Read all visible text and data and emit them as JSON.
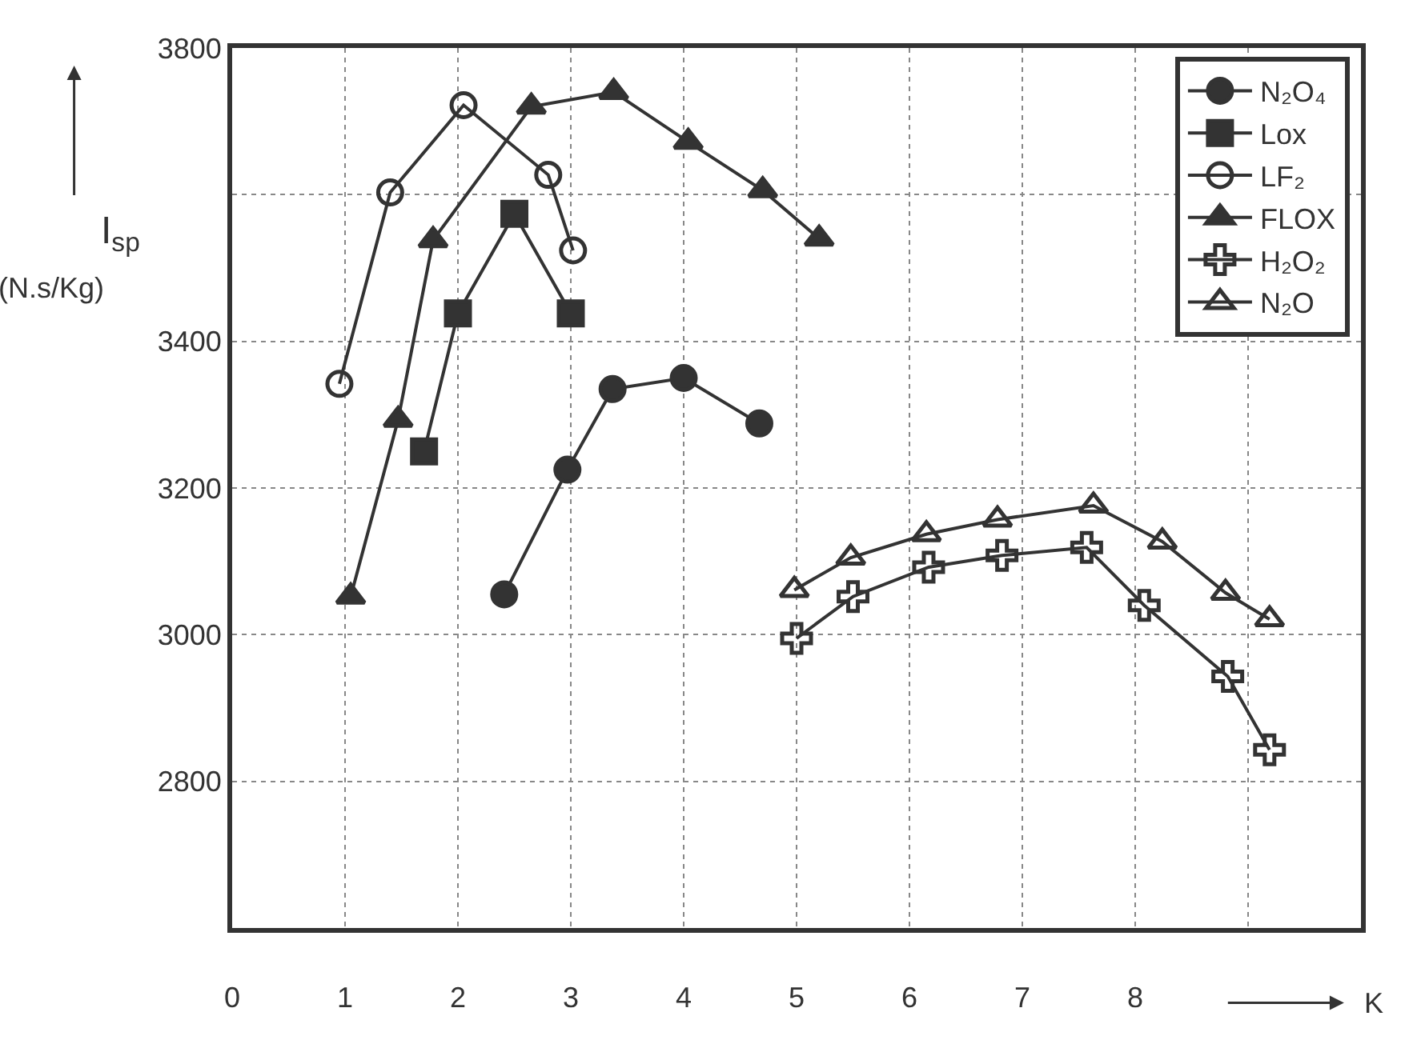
{
  "chart_data": {
    "type": "line",
    "xlabel": "K",
    "ylabel": "I$_{sp}$ (N.s/Kg)",
    "xlim": [
      0,
      10
    ],
    "xticks": [
      0,
      1,
      2,
      3,
      4,
      5,
      6,
      7,
      8,
      {
        "value": 9,
        "label": null
      }
    ],
    "ylim": [
      2600,
      3800
    ],
    "yticks": [
      {
        "value": 2800,
        "label": "2800"
      },
      3000,
      3200,
      3400,
      {
        "value": 3600,
        "label": null
      },
      3800
    ],
    "grid": true,
    "legend": "top right",
    "line_style": "solid",
    "series": [
      {
        "name": "N₂O₄",
        "color": "#333333",
        "marker": "circle",
        "x": [
          2.41,
          2.97,
          3.37,
          4.0,
          4.67
        ],
        "values": [
          3055,
          3225,
          3335,
          3350,
          3288
        ]
      },
      {
        "name": "Lox",
        "color": "#333333",
        "marker": "square",
        "x": [
          1.7,
          2.0,
          2.5,
          3.0
        ],
        "values": [
          3250,
          3438,
          3574,
          3438
        ]
      },
      {
        "name": "LF₂",
        "color": "#333333",
        "marker": "circle",
        "x": [
          0.95,
          1.4,
          2.05,
          2.8,
          3.02
        ],
        "values": [
          3342,
          3603,
          3722,
          3627,
          3524
        ]
      },
      {
        "name": "FLOX",
        "color": "#333333",
        "marker": "triangle",
        "x": [
          1.05,
          1.47,
          1.78,
          2.65,
          3.38,
          4.04,
          4.7,
          5.2
        ],
        "values": [
          3052,
          3293,
          3538,
          3720,
          3740,
          3672,
          3606,
          3540
        ]
      },
      {
        "name": "H₂O₂",
        "color": "#333333",
        "marker": "cross",
        "x": [
          5.0,
          5.5,
          6.17,
          6.82,
          7.57,
          8.08,
          8.82,
          9.19
        ],
        "values": [
          2995,
          3052,
          3092,
          3108,
          3119,
          3040,
          2943,
          2843
        ]
      },
      {
        "name": "N₂O",
        "color": "#333333",
        "marker": "triangle",
        "x": [
          4.98,
          5.48,
          6.15,
          6.78,
          7.63,
          8.24,
          8.8,
          9.19
        ],
        "values": [
          3061,
          3105,
          3137,
          3157,
          3176,
          3127,
          3057,
          3021
        ]
      }
    ]
  }
}
